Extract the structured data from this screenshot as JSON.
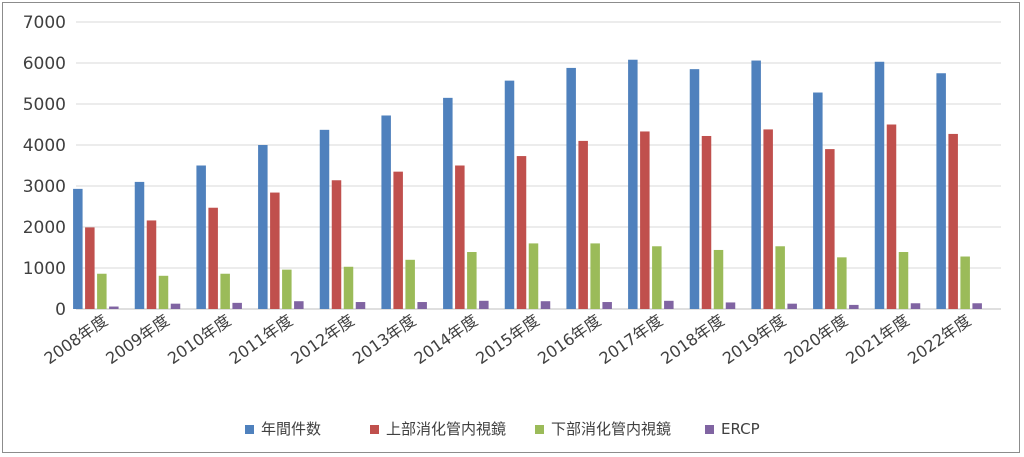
{
  "chart_data": {
    "type": "bar",
    "title": "",
    "xlabel": "",
    "ylabel": "",
    "ylim": [
      0,
      7000
    ],
    "yticks": [
      0,
      1000,
      2000,
      3000,
      4000,
      5000,
      6000,
      7000
    ],
    "grid": "horizontal",
    "legend_position": "bottom",
    "categories": [
      "2008年度",
      "2009年度",
      "2010年度",
      "2011年度",
      "2012年度",
      "2013年度",
      "2014年度",
      "2015年度",
      "2016年度",
      "2017年度",
      "2018年度",
      "2019年度",
      "2020年度",
      "2021年度",
      "2022年度"
    ],
    "series": [
      {
        "name": "年間件数",
        "color": "#4f81bd",
        "values": [
          2930,
          3100,
          3500,
          4000,
          4370,
          4720,
          5150,
          5570,
          5880,
          6080,
          5850,
          6060,
          5280,
          6030,
          5750
        ]
      },
      {
        "name": "上部消化管内視鏡",
        "color": "#c0504d",
        "values": [
          1990,
          2160,
          2470,
          2840,
          3140,
          3350,
          3500,
          3730,
          4100,
          4330,
          4220,
          4380,
          3900,
          4500,
          4270
        ]
      },
      {
        "name": "下部消化管内視鏡",
        "color": "#9bbb59",
        "values": [
          860,
          810,
          860,
          960,
          1030,
          1200,
          1390,
          1600,
          1600,
          1530,
          1440,
          1530,
          1260,
          1390,
          1280
        ]
      },
      {
        "name": "ERCP",
        "color": "#8064a2",
        "values": [
          60,
          130,
          150,
          190,
          170,
          170,
          200,
          190,
          170,
          200,
          160,
          130,
          100,
          140,
          140
        ]
      }
    ]
  }
}
